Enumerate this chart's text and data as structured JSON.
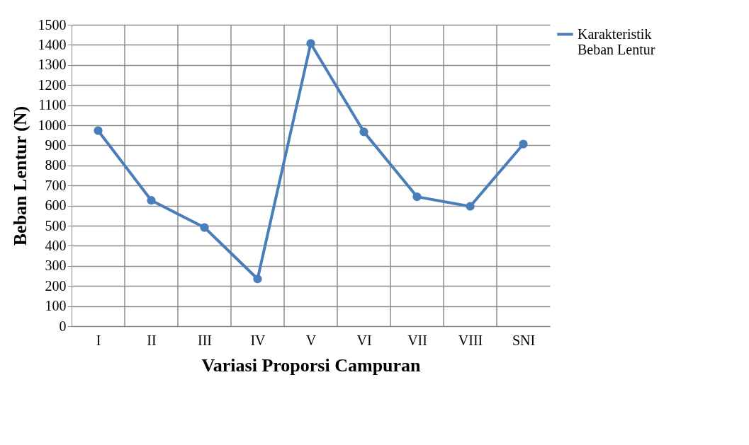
{
  "chart_data": {
    "type": "line",
    "xlabel": "Variasi Proporsi Campuran",
    "ylabel": "Beban Lentur (N)",
    "categories": [
      "I",
      "II",
      "III",
      "IV",
      "V",
      "VI",
      "VII",
      "VIII",
      "SNI"
    ],
    "series": [
      {
        "name": "Karakteristik Beban Lentur",
        "color": "#4a7ebb",
        "values": [
          973,
          626,
          491,
          235,
          1407,
          967,
          644,
          596,
          906
        ]
      }
    ],
    "ylim": [
      0,
      1500
    ],
    "yticks": [
      0,
      100,
      200,
      300,
      400,
      500,
      600,
      700,
      800,
      900,
      1000,
      1100,
      1200,
      1300,
      1400,
      1500
    ],
    "grid": true,
    "legend": "right",
    "marker": "circle",
    "line_style": "solid"
  }
}
